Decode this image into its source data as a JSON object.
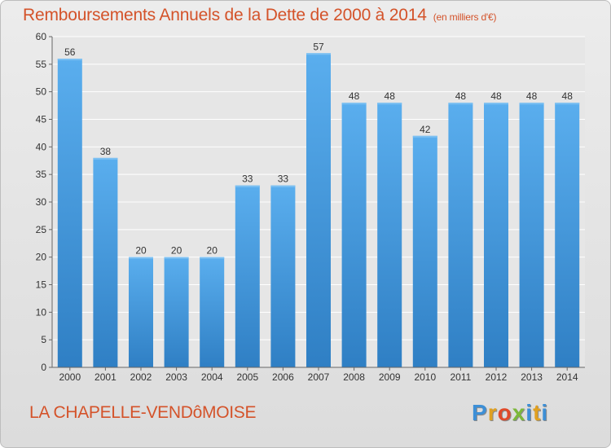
{
  "chart_data": {
    "type": "bar",
    "title": "Remboursements Annuels de la Dette de 2000 à 2014",
    "subtitle": "(en milliers d'€)",
    "categories": [
      "2000",
      "2001",
      "2002",
      "2003",
      "2004",
      "2005",
      "2006",
      "2007",
      "2008",
      "2009",
      "2010",
      "2011",
      "2012",
      "2013",
      "2014"
    ],
    "values": [
      56,
      38,
      20,
      20,
      20,
      33,
      33,
      57,
      48,
      48,
      42,
      48,
      48,
      48,
      48
    ],
    "ylim": [
      0,
      60
    ],
    "yticks": [
      0,
      5,
      10,
      15,
      20,
      25,
      30,
      35,
      40,
      45,
      50,
      55,
      60
    ],
    "xlabel": "",
    "ylabel": "",
    "grid": true,
    "bar_color": "#4a9fe0"
  },
  "footer": {
    "commune": "LA CHAPELLE-VENDôMOISE",
    "logo_letters": [
      {
        "char": "P",
        "color": "#3d8fd6"
      },
      {
        "char": "r",
        "color": "#e0a020"
      },
      {
        "char": "o",
        "color": "#e04a2a"
      },
      {
        "char": "x",
        "color": "#7cb83a"
      },
      {
        "char": "i",
        "color": "#3d8fd6"
      },
      {
        "char": "t",
        "color": "#e0a020"
      },
      {
        "char": "i",
        "color": "#3d8fd6"
      }
    ]
  }
}
